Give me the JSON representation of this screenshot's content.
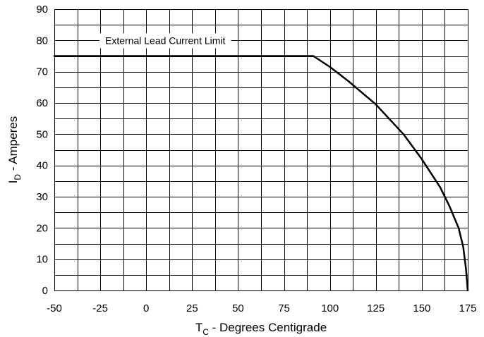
{
  "chart_data": {
    "type": "line",
    "xlabel": {
      "main": "T",
      "sub": "C",
      "rest": " - Degrees Centigrade"
    },
    "ylabel": {
      "main": "I",
      "sub": "D",
      "rest": " - Amperes"
    },
    "xlim": [
      -50,
      175
    ],
    "ylim": [
      0,
      90
    ],
    "x_ticks": [
      -50,
      -25,
      0,
      25,
      50,
      75,
      100,
      125,
      150,
      175
    ],
    "y_ticks": [
      0,
      10,
      20,
      30,
      40,
      50,
      60,
      70,
      80,
      90
    ],
    "x_minor_step": 12.5,
    "y_minor_step": 5,
    "grid": true,
    "annotation": "External Lead Current Limit",
    "series": [
      {
        "points": [
          [
            -50,
            75
          ],
          [
            91,
            75
          ],
          [
            100,
            71.5
          ],
          [
            110,
            67
          ],
          [
            125,
            59.5
          ],
          [
            140,
            50
          ],
          [
            150,
            42
          ],
          [
            160,
            33
          ],
          [
            165,
            27
          ],
          [
            170,
            20
          ],
          [
            172.5,
            14
          ],
          [
            174,
            7
          ],
          [
            175,
            0
          ]
        ]
      }
    ]
  }
}
